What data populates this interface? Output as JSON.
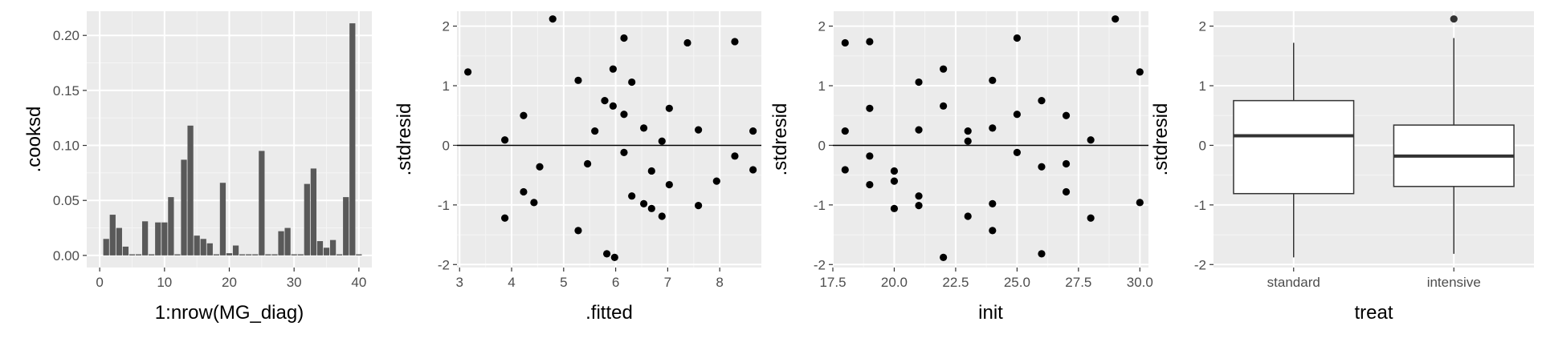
{
  "chart_data": [
    {
      "type": "bar",
      "xlabel": "1:nrow(MG_diag)",
      "ylabel": ".cooksd",
      "xlim": [
        -2,
        42
      ],
      "ylim": [
        -0.011,
        0.222
      ],
      "xticks": [
        0,
        10,
        20,
        30,
        40
      ],
      "xtick_labels": [
        "0",
        "10",
        "20",
        "30",
        "40"
      ],
      "yticks": [
        0.0,
        0.05,
        0.1,
        0.15,
        0.2
      ],
      "ytick_labels": [
        "0.00",
        "0.05",
        "0.10",
        "0.15",
        "0.20"
      ],
      "grid": true,
      "x": [
        1,
        2,
        3,
        4,
        5,
        6,
        7,
        8,
        9,
        10,
        11,
        12,
        13,
        14,
        15,
        16,
        17,
        18,
        19,
        20,
        21,
        22,
        23,
        24,
        25,
        26,
        27,
        28,
        29,
        30,
        31,
        32,
        33,
        34,
        35,
        36,
        37,
        38,
        39,
        40
      ],
      "values": [
        0.015,
        0.037,
        0.025,
        0.008,
        0.001,
        0.001,
        0.031,
        0.001,
        0.03,
        0.03,
        0.053,
        0.001,
        0.087,
        0.118,
        0.018,
        0.015,
        0.011,
        0.001,
        0.066,
        0.002,
        0.009,
        0.001,
        0.001,
        0.001,
        0.095,
        0.001,
        0.001,
        0.022,
        0.025,
        0.001,
        0.001,
        0.065,
        0.079,
        0.013,
        0.007,
        0.014,
        0.001,
        0.053,
        0.211,
        0.001
      ]
    },
    {
      "type": "scatter",
      "xlabel": ".fitted",
      "ylabel": ".stdresid",
      "xlim": [
        2.95,
        8.8
      ],
      "ylim": [
        -2.05,
        2.25
      ],
      "xticks": [
        3,
        4,
        5,
        6,
        7,
        8
      ],
      "xtick_labels": [
        "3",
        "4",
        "5",
        "6",
        "7",
        "8"
      ],
      "yticks": [
        -2,
        -1,
        0,
        1,
        2
      ],
      "ytick_labels": [
        "-2",
        "-1",
        "0",
        "1",
        "2"
      ],
      "hline": 0,
      "grid": true,
      "points": [
        [
          3.16,
          1.23
        ],
        [
          3.87,
          0.09
        ],
        [
          3.87,
          -1.22
        ],
        [
          4.23,
          0.5
        ],
        [
          4.23,
          -0.78
        ],
        [
          4.43,
          -0.96
        ],
        [
          4.54,
          -0.36
        ],
        [
          4.79,
          2.12
        ],
        [
          5.28,
          1.09
        ],
        [
          5.28,
          -1.43
        ],
        [
          5.46,
          -0.31
        ],
        [
          5.6,
          0.24
        ],
        [
          5.79,
          0.75
        ],
        [
          5.83,
          -1.82
        ],
        [
          5.95,
          1.28
        ],
        [
          5.95,
          0.66
        ],
        [
          5.98,
          -1.88
        ],
        [
          6.16,
          1.8
        ],
        [
          6.16,
          0.52
        ],
        [
          6.16,
          -0.12
        ],
        [
          6.31,
          1.06
        ],
        [
          6.31,
          -0.85
        ],
        [
          6.54,
          0.29
        ],
        [
          6.54,
          -0.98
        ],
        [
          6.69,
          -0.43
        ],
        [
          6.69,
          -1.06
        ],
        [
          6.89,
          0.07
        ],
        [
          6.89,
          -1.19
        ],
        [
          7.03,
          0.62
        ],
        [
          7.03,
          -0.66
        ],
        [
          7.38,
          1.72
        ],
        [
          7.59,
          0.26
        ],
        [
          7.59,
          -1.01
        ],
        [
          7.94,
          -0.6
        ],
        [
          8.29,
          1.74
        ],
        [
          8.29,
          -0.18
        ],
        [
          8.64,
          0.24
        ],
        [
          8.64,
          -0.41
        ]
      ]
    },
    {
      "type": "scatter",
      "xlabel": "init",
      "ylabel": ".stdresid",
      "xlim": [
        17.5,
        30.35
      ],
      "ylim": [
        -2.05,
        2.25
      ],
      "xticks": [
        17.5,
        20.0,
        22.5,
        25.0,
        27.5,
        30.0
      ],
      "xtick_labels": [
        "17.5",
        "20.0",
        "22.5",
        "25.0",
        "27.5",
        "30.0"
      ],
      "yticks": [
        -2,
        -1,
        0,
        1,
        2
      ],
      "ytick_labels": [
        "-2",
        "-1",
        "0",
        "1",
        "2"
      ],
      "hline": 0,
      "grid": true,
      "points": [
        [
          18,
          1.72
        ],
        [
          18,
          0.24
        ],
        [
          18,
          -0.41
        ],
        [
          19,
          1.74
        ],
        [
          19,
          0.62
        ],
        [
          19,
          -0.18
        ],
        [
          19,
          -0.66
        ],
        [
          20,
          -0.43
        ],
        [
          20,
          -0.6
        ],
        [
          20,
          -1.06
        ],
        [
          21,
          1.06
        ],
        [
          21,
          0.26
        ],
        [
          21,
          -0.85
        ],
        [
          21,
          -1.01
        ],
        [
          22,
          1.28
        ],
        [
          22,
          0.66
        ],
        [
          22,
          -1.88
        ],
        [
          23,
          0.24
        ],
        [
          23,
          0.07
        ],
        [
          23,
          -1.19
        ],
        [
          24,
          1.09
        ],
        [
          24,
          0.29
        ],
        [
          24,
          -0.98
        ],
        [
          24,
          -1.43
        ],
        [
          25,
          1.8
        ],
        [
          25,
          0.52
        ],
        [
          25,
          -0.12
        ],
        [
          26,
          0.75
        ],
        [
          26,
          -0.36
        ],
        [
          26,
          -1.82
        ],
        [
          27,
          0.5
        ],
        [
          27,
          -0.31
        ],
        [
          27,
          -0.78
        ],
        [
          28,
          0.09
        ],
        [
          28,
          -1.22
        ],
        [
          29,
          2.12
        ],
        [
          30,
          1.23
        ],
        [
          30,
          -0.96
        ]
      ]
    },
    {
      "type": "box",
      "xlabel": "treat",
      "ylabel": ".stdresid",
      "ylim": [
        -2.05,
        2.25
      ],
      "yticks": [
        -2,
        -1,
        0,
        1,
        2
      ],
      "ytick_labels": [
        "-2",
        "-1",
        "0",
        "1",
        "2"
      ],
      "grid": true,
      "categories": [
        "standard",
        "intensive"
      ],
      "boxes": [
        {
          "category": "standard",
          "min": -1.88,
          "q1": -0.81,
          "median": 0.16,
          "q3": 0.75,
          "max": 1.72,
          "outliers": []
        },
        {
          "category": "intensive",
          "min": -1.82,
          "q1": -0.69,
          "median": -0.18,
          "q3": 0.34,
          "max": 1.8,
          "outliers": [
            2.12
          ]
        }
      ]
    }
  ]
}
